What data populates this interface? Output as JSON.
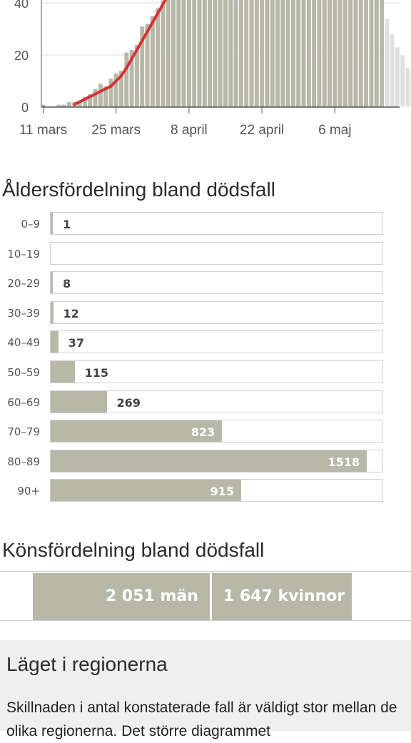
{
  "chart_data": [
    {
      "type": "bar",
      "description_kind": "daily bars with cumulative-average line (cropped at top)",
      "ylim": [
        0,
        45
      ],
      "ytick_labels": [
        "0",
        "20",
        "40"
      ],
      "yticks": [
        0,
        20,
        40
      ],
      "xtick_labels": [
        "11 mars",
        "25 mars",
        "8 april",
        "22 april",
        "6 maj"
      ],
      "xticks_day_index": [
        0,
        14,
        28,
        42,
        56
      ],
      "grid": true,
      "daily_values": [
        1,
        0,
        0,
        1,
        1,
        2,
        2,
        2,
        4,
        5,
        7,
        9,
        8,
        11,
        13,
        14,
        21,
        22,
        24,
        31,
        32,
        35,
        38,
        41,
        44,
        50,
        55,
        60,
        60,
        60,
        60,
        60,
        60,
        60,
        60,
        60,
        60,
        60,
        60,
        60,
        60,
        60,
        60,
        60,
        60,
        60,
        60,
        60,
        60,
        60,
        60,
        60,
        60,
        60,
        60,
        60,
        60,
        60,
        60,
        60,
        60,
        60,
        60,
        60,
        60,
        60,
        34,
        28,
        23,
        20,
        15,
        12,
        7,
        4,
        2
      ],
      "preliminary_from_index": 66,
      "line_series": {
        "color": "#d93036",
        "points": [
          [
            6,
            1
          ],
          [
            8,
            3
          ],
          [
            10,
            5
          ],
          [
            12,
            7
          ],
          [
            13,
            8
          ],
          [
            14,
            10
          ],
          [
            15,
            12
          ],
          [
            16,
            15
          ],
          [
            18,
            22
          ],
          [
            20,
            29
          ],
          [
            22,
            36
          ],
          [
            24,
            43
          ],
          [
            25,
            47
          ]
        ]
      },
      "colors": {
        "bar": "#b7b8a8",
        "bar_edge": "#ffffff",
        "preliminary": "#e0e0e0",
        "axis": "#555555",
        "grid": "#d8d8d8"
      }
    },
    {
      "type": "bar",
      "orientation": "horizontal",
      "title": "Åldersfördelning bland dödsfall",
      "categories": [
        "0–9",
        "10–19",
        "20–29",
        "30–39",
        "40–49",
        "50–59",
        "60–69",
        "70–79",
        "80–89",
        "90+"
      ],
      "values": [
        1,
        0,
        8,
        12,
        37,
        115,
        269,
        823,
        1518,
        915
      ],
      "value_labels": [
        "1",
        "",
        "8",
        "12",
        "37",
        "115",
        "269",
        "823",
        "1518",
        "915"
      ],
      "xlim": [
        0,
        1600
      ]
    },
    {
      "type": "bar",
      "orientation": "stacked-horizontal",
      "title": "Könsfördelning bland dödsfall",
      "categories": [
        "män",
        "kvinnor"
      ],
      "values": [
        2051,
        1647
      ],
      "value_labels": [
        "2 051 män",
        "1 647 kvinnor"
      ]
    }
  ],
  "age_section": {
    "title": "Åldersfördelning bland dödsfall"
  },
  "gender_section": {
    "title": "Könsfördelning bland dödsfall",
    "men_label": "2 051 män",
    "women_label": "1 647 kvinnor"
  },
  "region_section": {
    "title": "Läget i regionerna",
    "text": "Skillnaden i antal konstaterade fall är väldigt stor mellan de olika regionerna. Det större diagrammet"
  }
}
